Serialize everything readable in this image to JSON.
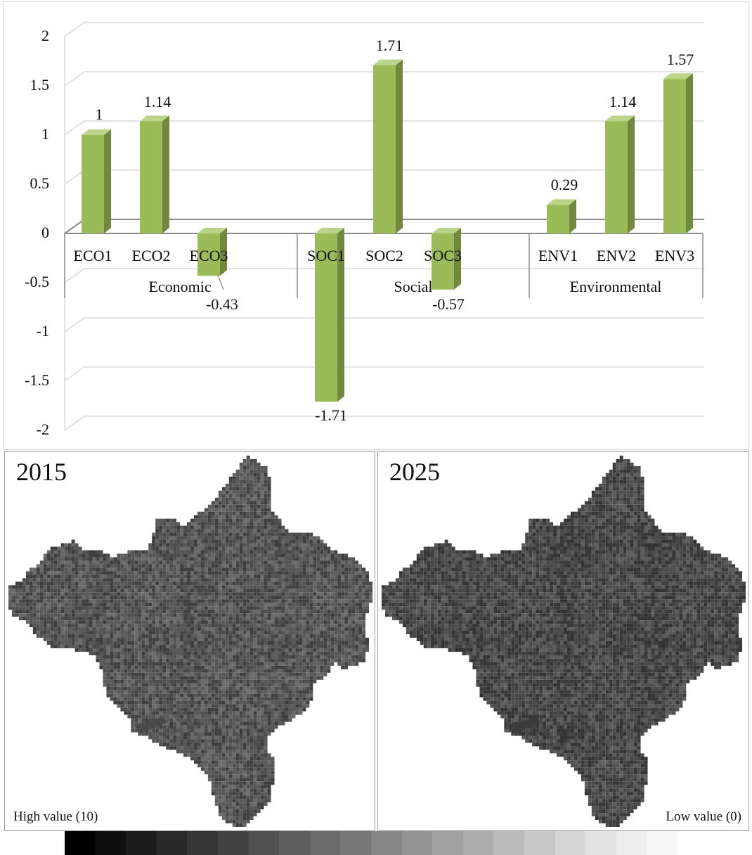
{
  "chart_data": {
    "type": "bar",
    "categories": [
      "ECO1",
      "ECO2",
      "ECO3",
      "SOC1",
      "SOC2",
      "SOC3",
      "ENV1",
      "ENV2",
      "ENV3"
    ],
    "groups": [
      {
        "label": "Economic",
        "members": [
          "ECO1",
          "ECO2",
          "ECO3"
        ]
      },
      {
        "label": "Social",
        "members": [
          "SOC1",
          "SOC2",
          "SOC3"
        ]
      },
      {
        "label": "Environmental",
        "members": [
          "ENV1",
          "ENV2",
          "ENV3"
        ]
      }
    ],
    "values": [
      1,
      1.14,
      -0.43,
      -1.71,
      1.71,
      -0.57,
      0.29,
      1.14,
      1.57
    ],
    "data_labels": [
      "1",
      "1.14",
      "-0.43",
      "-1.71",
      "1.71",
      "-0.57",
      "0.29",
      "1.14",
      "1.57"
    ],
    "yticks": [
      "2",
      "1.5",
      "1",
      "0.5",
      "0",
      "-0.5",
      "-1",
      "-1.5",
      "-2"
    ],
    "ylim": [
      -2,
      2
    ],
    "title": "",
    "xlabel": "",
    "ylabel": "",
    "grid": true,
    "style": "3d-column",
    "bar_color": "#9bbb59"
  },
  "maps": [
    {
      "year": "2015",
      "note": "High value (10)"
    },
    {
      "year": "2025",
      "note": "Low value (0)"
    }
  ],
  "legend_ramp": {
    "colors": [
      "#000000",
      "#0f0f0f",
      "#1c1c1c",
      "#292929",
      "#363636",
      "#434343",
      "#515151",
      "#5e5e5e",
      "#6b6b6b",
      "#787878",
      "#868686",
      "#939393",
      "#a0a0a0",
      "#adadad",
      "#bbbbbb",
      "#c8c8c8",
      "#d5d5d5",
      "#e2e2e2",
      "#eeeeee",
      "#f7f7f7"
    ]
  }
}
